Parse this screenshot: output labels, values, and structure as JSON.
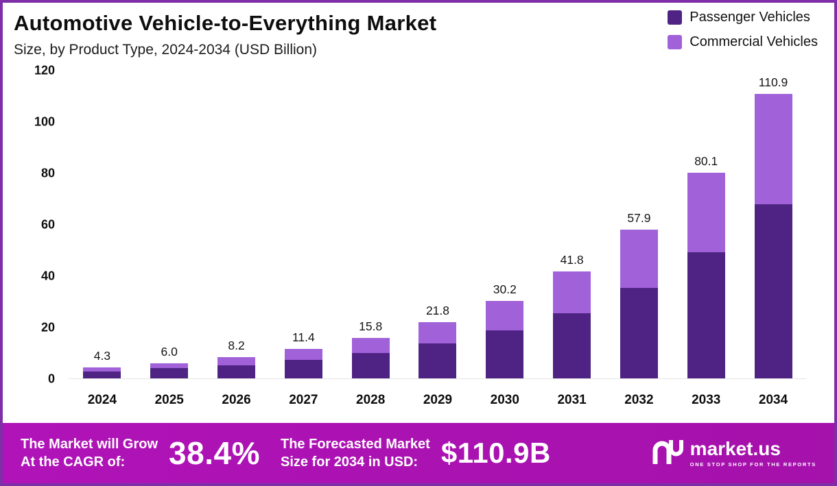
{
  "header": {
    "title": "Automotive Vehicle-to-Everything Market",
    "subtitle": "Size, by Product Type, 2024-2034 (USD Billion)"
  },
  "legend": [
    {
      "label": "Passenger Vehicles",
      "color": "#4e2383"
    },
    {
      "label": "Commercial Vehicles",
      "color": "#a161d9"
    }
  ],
  "chart_data": {
    "type": "bar",
    "stacked": true,
    "title": "Automotive Vehicle-to-Everything Market Size, by Product Type, 2024-2034 (USD Billion)",
    "categories": [
      "2024",
      "2025",
      "2026",
      "2027",
      "2028",
      "2029",
      "2030",
      "2031",
      "2032",
      "2033",
      "2034"
    ],
    "series": [
      {
        "name": "Passenger Vehicles",
        "color": "#4e2383",
        "values": [
          2.7,
          3.9,
          5.1,
          7.2,
          9.9,
          13.6,
          18.6,
          25.4,
          35.2,
          49.3,
          68.0
        ]
      },
      {
        "name": "Commercial Vehicles",
        "color": "#a161d9",
        "values": [
          1.6,
          2.1,
          3.1,
          4.2,
          5.9,
          8.2,
          11.6,
          16.4,
          22.7,
          30.8,
          42.9
        ]
      }
    ],
    "totals": [
      4.3,
      6.0,
      8.2,
      11.4,
      15.8,
      21.8,
      30.2,
      41.8,
      57.9,
      80.1,
      110.9
    ],
    "total_labels": [
      "4.3",
      "6.0",
      "8.2",
      "11.4",
      "15.8",
      "21.8",
      "30.2",
      "41.8",
      "57.9",
      "80.1",
      "110.9"
    ],
    "xlabel": "",
    "ylabel": "",
    "ylim": [
      0,
      120
    ],
    "yticks": [
      0,
      20,
      40,
      60,
      80,
      100,
      120
    ],
    "grid": false,
    "legend_position": "top-right"
  },
  "footer": {
    "cagr_label_line1": "The Market will Grow",
    "cagr_label_line2": "At the CAGR of:",
    "cagr_value": "38.4%",
    "forecast_label_line1": "The Forecasted Market",
    "forecast_label_line2": "Size for 2034 in USD:",
    "forecast_value": "$110.9B",
    "brand": "market.us",
    "brand_tagline": "ONE STOP SHOP FOR THE REPORTS"
  }
}
